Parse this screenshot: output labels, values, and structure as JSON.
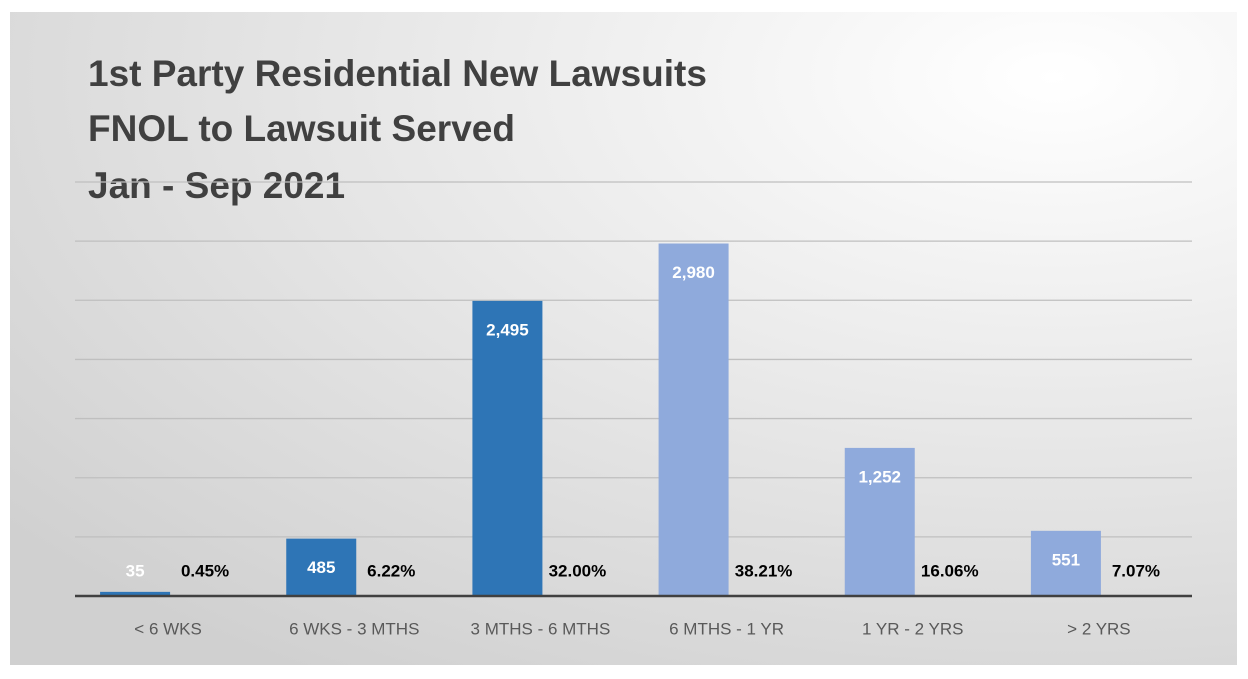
{
  "chart_data": {
    "type": "bar",
    "title": [
      "1st Party Residential New Lawsuits",
      "FNOL to Lawsuit Served",
      "Jan - Sep 2021"
    ],
    "categories": [
      "< 6 WKS",
      "6 WKS - 3 MTHS",
      "3 MTHS - 6 MTHS",
      "6 MTHS - 1 YR",
      "1 YR - 2 YRS",
      "> 2 YRS"
    ],
    "series": [
      {
        "values": [
          35,
          485,
          2495,
          2980,
          1252,
          551
        ],
        "value_labels": [
          "35",
          "485",
          "2,495",
          "2,980",
          "1,252",
          "551"
        ],
        "colors": [
          "#2e75b6",
          "#2e75b6",
          "#2e75b6",
          "#8faadc",
          "#8faadc",
          "#8faadc"
        ]
      },
      {
        "values": [
          0.45,
          6.22,
          32.0,
          38.21,
          16.06,
          7.07
        ],
        "value_labels": [
          "0.45%",
          "6.22%",
          "32.00%",
          "38.21%",
          "16.06%",
          "7.07%"
        ]
      }
    ],
    "ylim": [
      0,
      3500
    ],
    "yticks": [
      0,
      500,
      1000,
      1500,
      2000,
      2500,
      3000,
      3500
    ],
    "grid": true
  }
}
